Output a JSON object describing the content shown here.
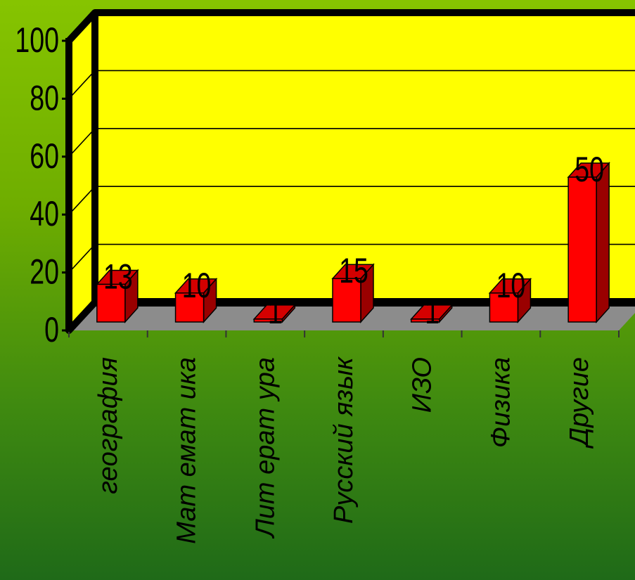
{
  "chart_data": {
    "type": "bar",
    "categories": [
      "география",
      "Мат емат ика",
      "Лит ерат ура",
      "Русский язык",
      "ИЗО",
      "Физика",
      "Другие"
    ],
    "values": [
      13,
      10,
      1,
      15,
      1,
      10,
      50
    ],
    "data_labels": [
      "13",
      "10",
      "1",
      "15",
      "1",
      "10",
      "50"
    ],
    "yticks": [
      "0",
      "20",
      "40",
      "60",
      "80",
      "100"
    ],
    "ylim": [
      0,
      100
    ],
    "grid": true,
    "legend": "none",
    "colors": {
      "wall": "#ffff00",
      "floor": "#8c8c8c",
      "bar_front": "#ff0000",
      "bar_side": "#9a0000",
      "bar_top": "#d40000",
      "frame": "#000000"
    }
  }
}
